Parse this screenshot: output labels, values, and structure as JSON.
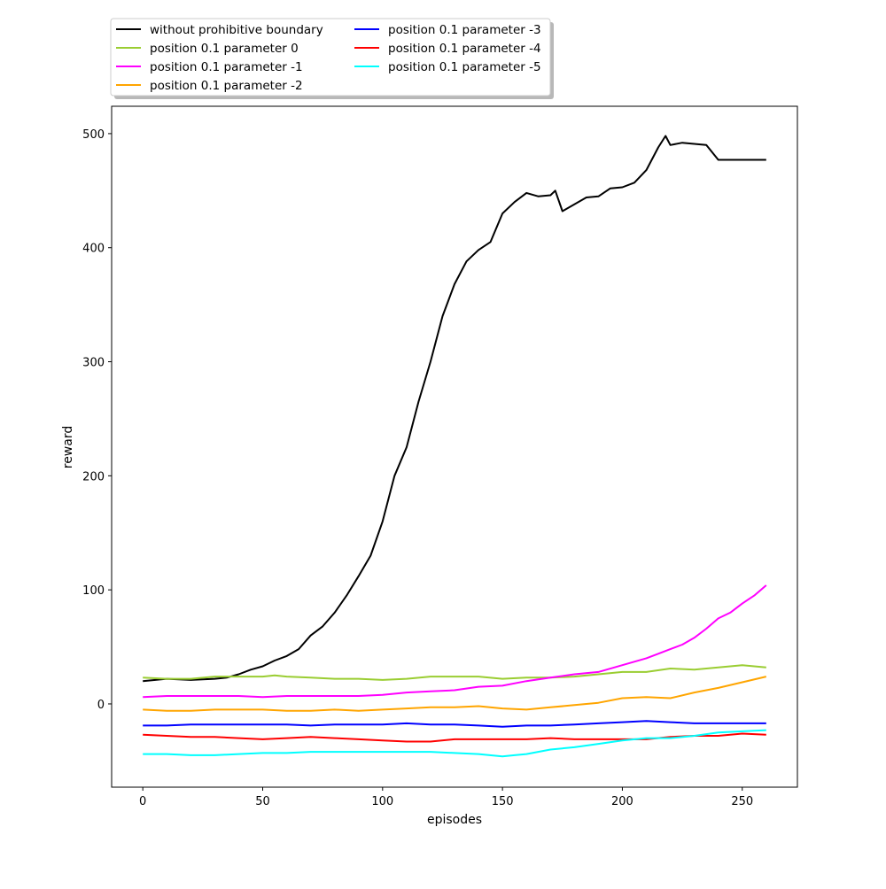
{
  "chart_data": {
    "type": "line",
    "title": "",
    "xlabel": "episodes",
    "ylabel": "reward",
    "xlim": [
      -13,
      273
    ],
    "ylim": [
      -73,
      524
    ],
    "xticks": [
      0,
      50,
      100,
      150,
      200,
      250
    ],
    "yticks": [
      0,
      100,
      200,
      300,
      400,
      500
    ],
    "grid": false,
    "legend_position": "top-left, above plot, two columns",
    "series": [
      {
        "name": "without prohibitive boundary",
        "color": "#000000",
        "x": [
          0,
          10,
          20,
          30,
          35,
          40,
          45,
          50,
          55,
          60,
          65,
          70,
          75,
          80,
          85,
          90,
          95,
          100,
          105,
          110,
          115,
          120,
          125,
          130,
          135,
          140,
          145,
          150,
          155,
          160,
          165,
          170,
          172,
          175,
          180,
          185,
          190,
          195,
          200,
          205,
          210,
          215,
          218,
          220,
          225,
          230,
          235,
          240,
          245,
          250,
          255,
          260
        ],
        "values": [
          20,
          22,
          21,
          22,
          23,
          26,
          30,
          33,
          38,
          42,
          48,
          60,
          68,
          80,
          95,
          112,
          130,
          160,
          200,
          225,
          265,
          300,
          340,
          368,
          388,
          398,
          405,
          430,
          440,
          448,
          445,
          446,
          450,
          432,
          438,
          444,
          445,
          452,
          453,
          457,
          468,
          488,
          498,
          490,
          492,
          491,
          490,
          477,
          477,
          477,
          477,
          477
        ]
      },
      {
        "name": "position 0.1 parameter 0",
        "color": "#9acd32",
        "x": [
          0,
          10,
          20,
          30,
          40,
          50,
          55,
          60,
          70,
          80,
          90,
          100,
          110,
          120,
          130,
          140,
          150,
          160,
          170,
          180,
          190,
          200,
          210,
          220,
          230,
          240,
          250,
          260
        ],
        "values": [
          23,
          22,
          22,
          24,
          24,
          24,
          25,
          24,
          23,
          22,
          22,
          21,
          22,
          24,
          24,
          24,
          22,
          23,
          23,
          24,
          26,
          28,
          28,
          31,
          30,
          32,
          34,
          32
        ]
      },
      {
        "name": "position 0.1 parameter -1",
        "color": "#ff00ff",
        "x": [
          0,
          10,
          20,
          30,
          40,
          50,
          60,
          70,
          80,
          90,
          100,
          110,
          120,
          130,
          140,
          150,
          160,
          170,
          180,
          190,
          200,
          210,
          215,
          220,
          225,
          230,
          235,
          240,
          245,
          250,
          255,
          260
        ],
        "values": [
          6,
          7,
          7,
          7,
          7,
          6,
          7,
          7,
          7,
          7,
          8,
          10,
          11,
          12,
          15,
          16,
          20,
          23,
          26,
          28,
          34,
          40,
          44,
          48,
          52,
          58,
          66,
          75,
          80,
          88,
          95,
          104
        ]
      },
      {
        "name": "position 0.1 parameter -2",
        "color": "#ffa500",
        "x": [
          0,
          10,
          20,
          30,
          40,
          50,
          60,
          70,
          80,
          90,
          100,
          110,
          120,
          130,
          140,
          150,
          160,
          170,
          180,
          190,
          200,
          210,
          220,
          230,
          240,
          250,
          260
        ],
        "values": [
          -5,
          -6,
          -6,
          -5,
          -5,
          -5,
          -6,
          -6,
          -5,
          -6,
          -5,
          -4,
          -3,
          -3,
          -2,
          -4,
          -5,
          -3,
          -1,
          1,
          5,
          6,
          5,
          10,
          14,
          19,
          24
        ]
      },
      {
        "name": "position 0.1 parameter -3",
        "color": "#0000ff",
        "x": [
          0,
          10,
          20,
          30,
          40,
          50,
          60,
          70,
          80,
          90,
          100,
          110,
          120,
          130,
          140,
          150,
          160,
          170,
          180,
          190,
          200,
          210,
          220,
          230,
          240,
          250,
          260
        ],
        "values": [
          -19,
          -19,
          -18,
          -18,
          -18,
          -18,
          -18,
          -19,
          -18,
          -18,
          -18,
          -17,
          -18,
          -18,
          -19,
          -20,
          -19,
          -19,
          -18,
          -17,
          -16,
          -15,
          -16,
          -17,
          -17,
          -17,
          -17
        ]
      },
      {
        "name": "position 0.1 parameter -4",
        "color": "#ff0000",
        "x": [
          0,
          10,
          20,
          30,
          40,
          50,
          60,
          70,
          80,
          90,
          100,
          110,
          120,
          130,
          140,
          150,
          160,
          170,
          180,
          190,
          200,
          210,
          220,
          230,
          240,
          250,
          260
        ],
        "values": [
          -27,
          -28,
          -29,
          -29,
          -30,
          -31,
          -30,
          -29,
          -30,
          -31,
          -32,
          -33,
          -33,
          -31,
          -31,
          -31,
          -31,
          -30,
          -31,
          -31,
          -31,
          -31,
          -29,
          -28,
          -28,
          -26,
          -27
        ]
      },
      {
        "name": "position 0.1 parameter -5",
        "color": "#00ffff",
        "x": [
          0,
          10,
          20,
          30,
          40,
          50,
          60,
          70,
          80,
          90,
          100,
          110,
          120,
          130,
          140,
          150,
          155,
          160,
          170,
          180,
          190,
          200,
          210,
          220,
          230,
          240,
          250,
          260
        ],
        "values": [
          -44,
          -44,
          -45,
          -45,
          -44,
          -43,
          -43,
          -42,
          -42,
          -42,
          -42,
          -42,
          -42,
          -43,
          -44,
          -46,
          -45,
          -44,
          -40,
          -38,
          -35,
          -32,
          -30,
          -30,
          -28,
          -25,
          -24,
          -23
        ]
      }
    ]
  }
}
